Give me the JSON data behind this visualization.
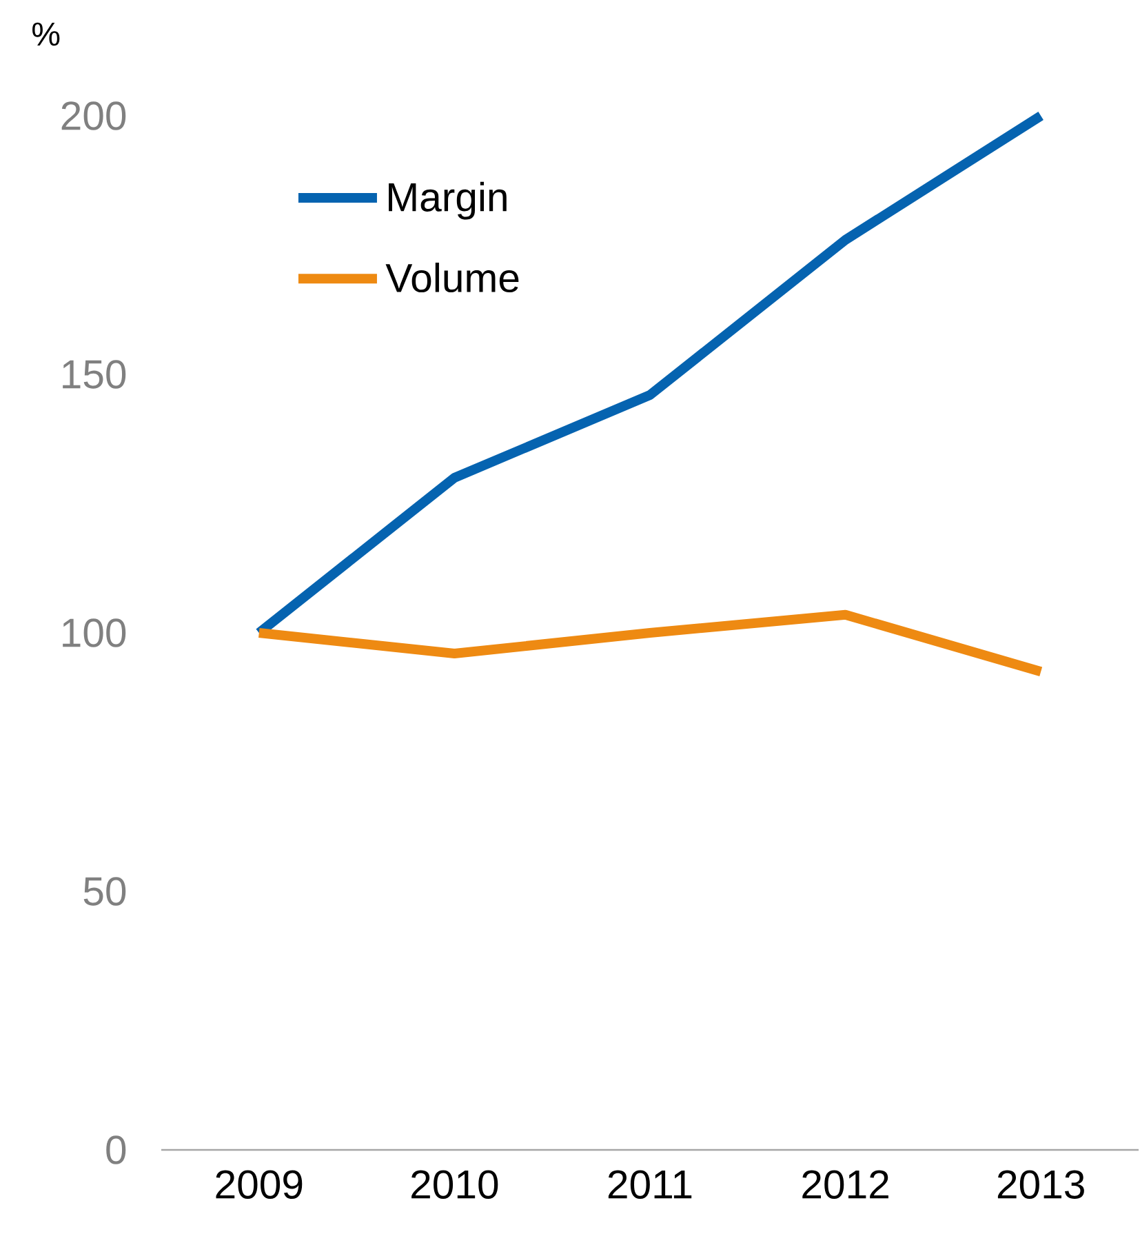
{
  "chart_data": {
    "type": "line",
    "ylabel": "%",
    "categories": [
      "2009",
      "2010",
      "2011",
      "2012",
      "2013"
    ],
    "series": [
      {
        "name": "Margin",
        "color": "#0563b0",
        "values": [
          100,
          130,
          146,
          176,
          200
        ]
      },
      {
        "name": "Volume",
        "color": "#ee8a12",
        "values": [
          100,
          96,
          100,
          103.5,
          92.5
        ]
      }
    ],
    "ylim": [
      0,
      200
    ],
    "yticks": [
      0,
      50,
      100,
      150,
      200
    ],
    "legend": "top left",
    "marker": "none",
    "line_style": "solid",
    "grid": false
  }
}
